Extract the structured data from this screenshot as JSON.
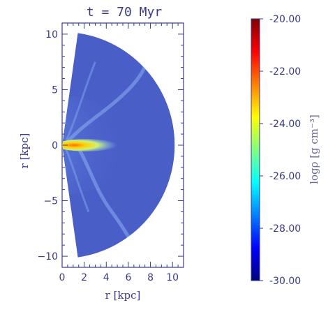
{
  "chart_data": {
    "type": "heatmap",
    "title": "t =  70 Myr",
    "xlabel": "r [kpc]",
    "ylabel": "r [kpc]",
    "xlim": [
      0,
      11
    ],
    "ylim": [
      -11,
      11
    ],
    "x_ticks": [
      0,
      2,
      4,
      6,
      8,
      10
    ],
    "y_ticks": [
      -10,
      -5,
      0,
      5,
      10
    ],
    "y_tick_labels": [
      "−10",
      "−5",
      "0",
      "5",
      "10"
    ],
    "domain": {
      "shape": "half-disk wedge",
      "outer_radius_kpc": 10.2,
      "opening_half_angle_deg": 82
    },
    "colorbar": {
      "label": "logρ [g cm⁻³]",
      "range": [
        -30,
        -20
      ],
      "ticks": [
        -30,
        -28,
        -26,
        -24,
        -22,
        -20
      ],
      "tick_labels": [
        "-30.00",
        "-28.00",
        "-26.00",
        "-24.00",
        "-22.00",
        "-20.00"
      ],
      "colormap": [
        "#000080",
        "#0000ff",
        "#0080ff",
        "#00ffff",
        "#80ff80",
        "#ffff00",
        "#ff8000",
        "#ff0000",
        "#800000"
      ]
    },
    "colors": {
      "background_gas": "#4a5ec8",
      "axis": "#3a3a8a"
    }
  }
}
